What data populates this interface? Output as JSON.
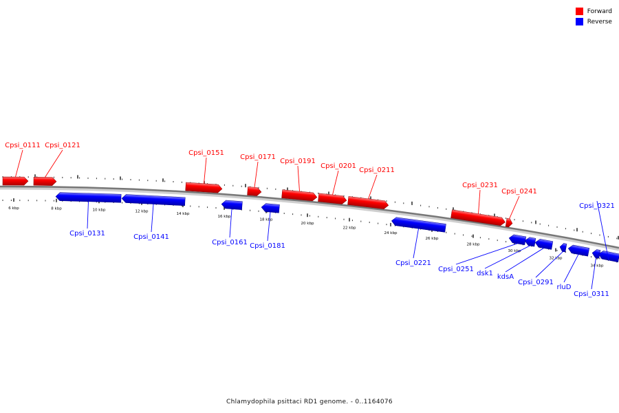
{
  "legend": {
    "forward_label": "Forward",
    "reverse_label": "Reverse",
    "forward_color": "#ff0000",
    "reverse_color": "#0000ff"
  },
  "caption": "Chlamydophila psittaci RD1 genome. - 0..1164076",
  "ticks": [
    "6 kbp",
    "8 kbp",
    "10 kbp",
    "12 kbp",
    "14 kbp",
    "16 kbp",
    "18 kbp",
    "20 kbp",
    "22 kbp",
    "24 kbp",
    "26 kbp",
    "28 kbp",
    "30 kbp",
    "32 kbp",
    "34 kbp"
  ],
  "genes": [
    {
      "label": "Cpsi_0111",
      "strand": "forward"
    },
    {
      "label": "Cpsi_0121",
      "strand": "forward"
    },
    {
      "label": "Cpsi_0131",
      "strand": "reverse"
    },
    {
      "label": "Cpsi_0141",
      "strand": "reverse"
    },
    {
      "label": "Cpsi_0151",
      "strand": "forward"
    },
    {
      "label": "Cpsi_0161",
      "strand": "reverse"
    },
    {
      "label": "Cpsi_0171",
      "strand": "forward"
    },
    {
      "label": "Cpsi_0181",
      "strand": "reverse"
    },
    {
      "label": "Cpsi_0191",
      "strand": "forward"
    },
    {
      "label": "Cpsi_0201",
      "strand": "forward"
    },
    {
      "label": "Cpsi_0211",
      "strand": "forward"
    },
    {
      "label": "Cpsi_0221",
      "strand": "reverse"
    },
    {
      "label": "Cpsi_0231",
      "strand": "forward"
    },
    {
      "label": "Cpsi_0241",
      "strand": "forward"
    },
    {
      "label": "Cpsi_0251",
      "strand": "reverse"
    },
    {
      "label": "dsk1",
      "strand": "reverse"
    },
    {
      "label": "kdsA",
      "strand": "reverse"
    },
    {
      "label": "Cpsi_0291",
      "strand": "reverse"
    },
    {
      "label": "rluD",
      "strand": "reverse"
    },
    {
      "label": "Cpsi_0311",
      "strand": "reverse"
    },
    {
      "label": "Cpsi_0321",
      "strand": "reverse"
    }
  ]
}
